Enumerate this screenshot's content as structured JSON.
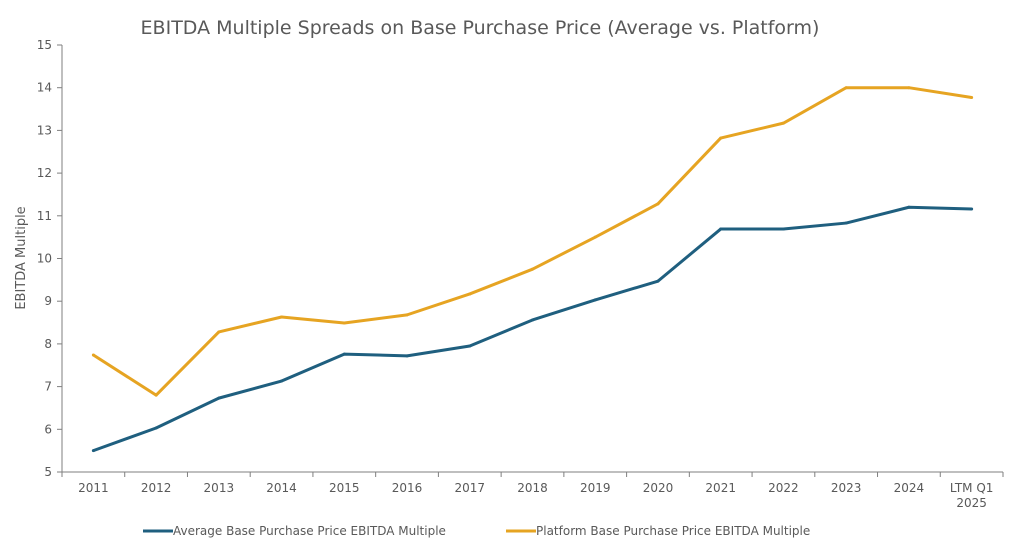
{
  "chart_data": {
    "type": "line",
    "title": "EBITDA Multiple Spreads on Base Purchase Price (Average vs. Platform)",
    "xlabel": "",
    "ylabel": "EBITDA Multiple",
    "ylim": [
      5,
      15
    ],
    "yticks": [
      5,
      6,
      7,
      8,
      9,
      10,
      11,
      12,
      13,
      14,
      15
    ],
    "grid": false,
    "legend_position": "bottom",
    "categories": [
      "2011",
      "2012",
      "2013",
      "2014",
      "2015",
      "2016",
      "2017",
      "2018",
      "2019",
      "2020",
      "2021",
      "2022",
      "2023",
      "2024",
      "LTM Q1 2025"
    ],
    "category_lines": [
      [
        "2011"
      ],
      [
        "2012"
      ],
      [
        "2013"
      ],
      [
        "2014"
      ],
      [
        "2015"
      ],
      [
        "2016"
      ],
      [
        "2017"
      ],
      [
        "2018"
      ],
      [
        "2019"
      ],
      [
        "2020"
      ],
      [
        "2021"
      ],
      [
        "2022"
      ],
      [
        "2023"
      ],
      [
        "2024"
      ],
      [
        "LTM Q1",
        "2025"
      ]
    ],
    "series": [
      {
        "name": "Average Base Purchase Price EBITDA Multiple",
        "color": "#1f5f7f",
        "values": [
          5.5,
          6.03,
          6.73,
          7.13,
          7.76,
          7.72,
          7.95,
          8.56,
          9.03,
          9.47,
          10.69,
          10.69,
          10.83,
          11.2,
          11.16
        ]
      },
      {
        "name": "Platform Base Purchase Price EBITDA Multiple",
        "color": "#e6a422",
        "values": [
          7.74,
          6.8,
          8.28,
          8.63,
          8.49,
          8.68,
          9.17,
          9.75,
          10.5,
          11.28,
          12.82,
          13.17,
          14.0,
          14.0,
          13.77
        ]
      }
    ]
  }
}
